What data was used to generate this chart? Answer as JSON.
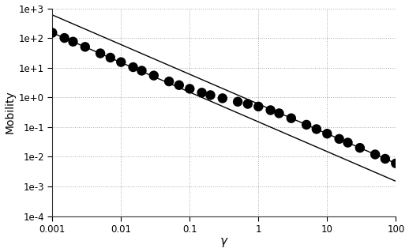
{
  "xlabel": "γ",
  "ylabel": "Mobility",
  "xlim": [
    0.001,
    100
  ],
  "ylim": [
    0.0001,
    1000.0
  ],
  "line1_prefactor": 0.15,
  "line2_prefactor": 0.6,
  "dot_color": "#000000",
  "line_color": "#000000",
  "background_color": "#ffffff",
  "grid_color": "#aaaaaa",
  "dot_gamma": [
    0.001,
    0.0015,
    0.002,
    0.003,
    0.005,
    0.007,
    0.01,
    0.015,
    0.02,
    0.03,
    0.05,
    0.07,
    0.1,
    0.15,
    0.2,
    0.3,
    0.5,
    0.7,
    1.0,
    1.5,
    2.0,
    3.0,
    5.0,
    7.0,
    10.0,
    15.0,
    20.0,
    30.0,
    50.0,
    70.0,
    100.0
  ],
  "ytick_labels": [
    "1e-4",
    "1e-3",
    "1e-2",
    "1e-1",
    "1e+0",
    "1e+1",
    "1e+2",
    "1e+3"
  ],
  "ytick_values": [
    0.0001,
    0.001,
    0.01,
    0.1,
    1.0,
    10.0,
    100.0,
    1000.0
  ],
  "xtick_values": [
    0.001,
    0.01,
    0.1,
    1,
    10,
    100
  ],
  "xtick_labels": [
    "0.001",
    "0.01",
    "0.1",
    "1",
    "10",
    "100"
  ]
}
